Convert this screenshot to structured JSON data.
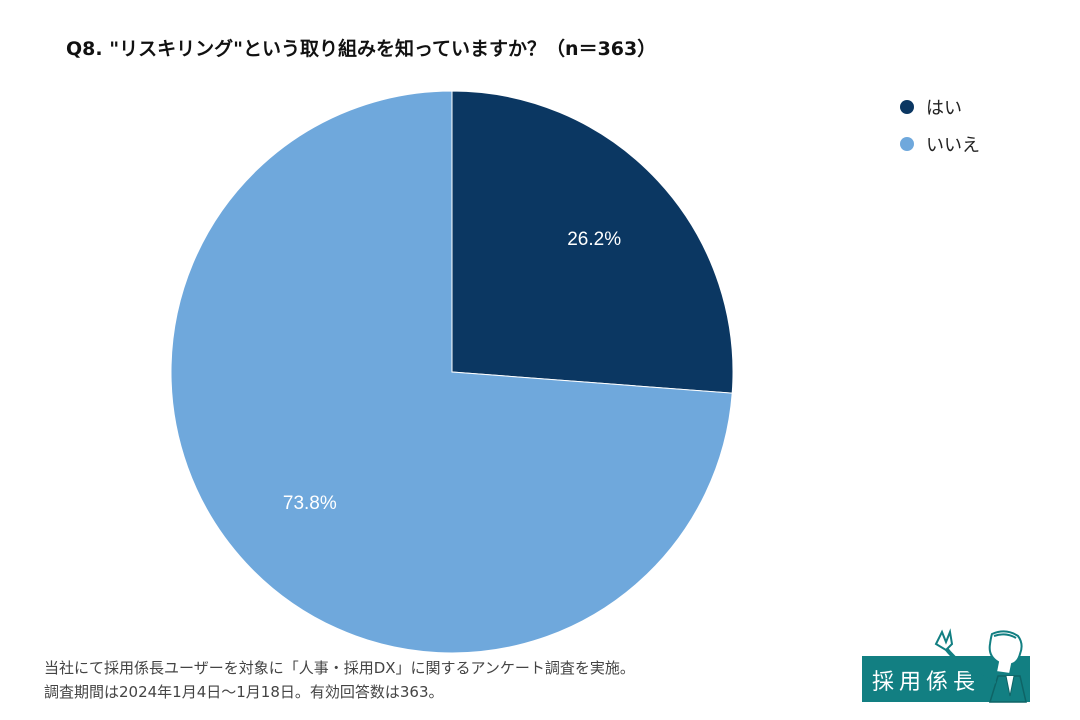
{
  "title": "Q8. \"リスキリング\"という取り組みを知っていますか？（n＝363）",
  "chart_data": {
    "type": "pie",
    "title": "Q8. \"リスキリング\"という取り組みを知っていますか？（n＝363）",
    "categories": [
      "はい",
      "いいえ"
    ],
    "values": [
      26.2,
      73.8
    ],
    "value_labels": [
      "26.2%",
      "73.8%"
    ],
    "colors": [
      "#0b3762",
      "#6fa8dc"
    ],
    "start_angle": "12 o'clock",
    "direction": "clockwise",
    "legend_position": "top-right"
  },
  "legend": {
    "items": [
      {
        "label": "はい",
        "color": "#0b3762"
      },
      {
        "label": "いいえ",
        "color": "#6fa8dc"
      }
    ]
  },
  "footnote": {
    "line1": "当社にて採用係長ユーザーを対象に「人事・採用DX」に関するアンケート調査を実施。",
    "line2": "調査期間は2024年1月4日〜1月18日。有効回答数は363。"
  },
  "logo": {
    "text": "採用係長",
    "color": "#127f82"
  }
}
